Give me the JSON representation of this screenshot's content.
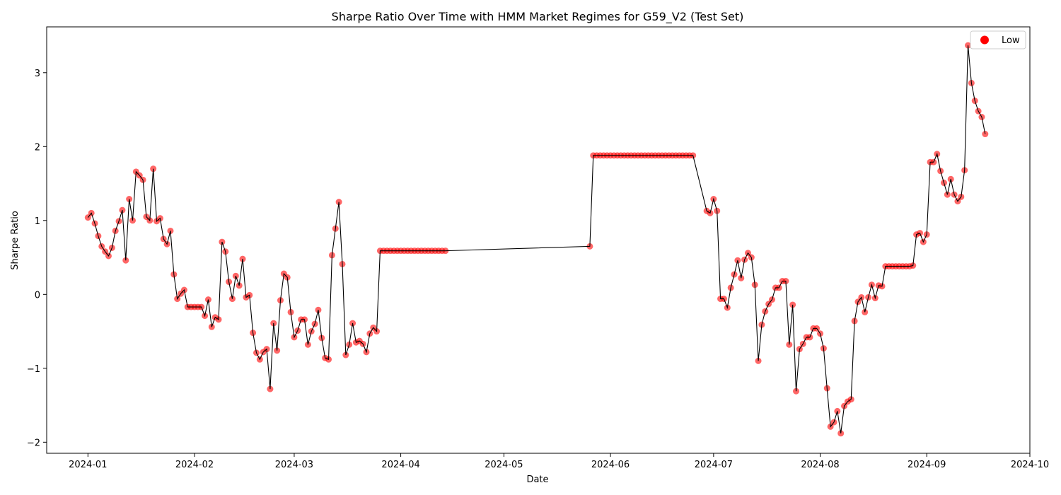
{
  "chart_data": {
    "type": "scatter",
    "title": "Sharpe Ratio Over Time with HMM Market Regimes for G59_V2 (Test Set)",
    "xlabel": "Date",
    "ylabel": "Sharpe Ratio",
    "x_ticks": [
      "2024-01",
      "2024-02",
      "2024-03",
      "2024-04",
      "2024-05",
      "2024-06",
      "2024-07",
      "2024-08",
      "2024-09",
      "2024-10"
    ],
    "y_ticks": [
      "−2",
      "−1",
      "0",
      "1",
      "2",
      "3"
    ],
    "xlim": [
      "2023-12-20",
      "2024-10-01"
    ],
    "ylim": [
      -2.15,
      3.62
    ],
    "grid": false,
    "legend_position": "top-right",
    "line_color": "#000000",
    "marker_color": "#ff0000",
    "legend": [
      {
        "name": "Low",
        "color": "#ff0000"
      }
    ],
    "series": [
      {
        "name": "Low",
        "points": [
          [
            "2024-01-01",
            1.04
          ],
          [
            "2024-01-02",
            1.1
          ],
          [
            "2024-01-03",
            0.96
          ],
          [
            "2024-01-04",
            0.79
          ],
          [
            "2024-01-05",
            0.65
          ],
          [
            "2024-01-06",
            0.58
          ],
          [
            "2024-01-07",
            0.52
          ],
          [
            "2024-01-08",
            0.63
          ],
          [
            "2024-01-09",
            0.86
          ],
          [
            "2024-01-10",
            0.99
          ],
          [
            "2024-01-11",
            1.14
          ],
          [
            "2024-01-12",
            0.46
          ],
          [
            "2024-01-13",
            1.29
          ],
          [
            "2024-01-14",
            1.0
          ],
          [
            "2024-01-15",
            1.66
          ],
          [
            "2024-01-16",
            1.61
          ],
          [
            "2024-01-17",
            1.55
          ],
          [
            "2024-01-18",
            1.05
          ],
          [
            "2024-01-19",
            1.0
          ],
          [
            "2024-01-20",
            1.7
          ],
          [
            "2024-01-21",
            0.99
          ],
          [
            "2024-01-22",
            1.03
          ],
          [
            "2024-01-23",
            0.75
          ],
          [
            "2024-01-24",
            0.68
          ],
          [
            "2024-01-25",
            0.86
          ],
          [
            "2024-01-26",
            0.27
          ],
          [
            "2024-01-27",
            -0.06
          ],
          [
            "2024-01-28",
            0.01
          ],
          [
            "2024-01-29",
            0.06
          ],
          [
            "2024-01-30",
            -0.17
          ],
          [
            "2024-01-31",
            -0.17
          ],
          [
            "2024-02-01",
            -0.17
          ],
          [
            "2024-02-02",
            -0.17
          ],
          [
            "2024-02-03",
            -0.17
          ],
          [
            "2024-02-04",
            -0.29
          ],
          [
            "2024-02-05",
            -0.07
          ],
          [
            "2024-02-06",
            -0.44
          ],
          [
            "2024-02-07",
            -0.31
          ],
          [
            "2024-02-08",
            -0.34
          ],
          [
            "2024-02-09",
            0.71
          ],
          [
            "2024-02-10",
            0.58
          ],
          [
            "2024-02-11",
            0.17
          ],
          [
            "2024-02-12",
            -0.06
          ],
          [
            "2024-02-13",
            0.25
          ],
          [
            "2024-02-14",
            0.12
          ],
          [
            "2024-02-15",
            0.48
          ],
          [
            "2024-02-16",
            -0.04
          ],
          [
            "2024-02-17",
            -0.01
          ],
          [
            "2024-02-18",
            -0.52
          ],
          [
            "2024-02-19",
            -0.79
          ],
          [
            "2024-02-20",
            -0.88
          ],
          [
            "2024-02-21",
            -0.78
          ],
          [
            "2024-02-22",
            -0.74
          ],
          [
            "2024-02-23",
            -1.28
          ],
          [
            "2024-02-24",
            -0.39
          ],
          [
            "2024-02-25",
            -0.76
          ],
          [
            "2024-02-26",
            -0.08
          ],
          [
            "2024-02-27",
            0.28
          ],
          [
            "2024-02-28",
            0.23
          ],
          [
            "2024-02-29",
            -0.24
          ],
          [
            "2024-03-01",
            -0.58
          ],
          [
            "2024-03-02",
            -0.49
          ],
          [
            "2024-03-03",
            -0.34
          ],
          [
            "2024-03-04",
            -0.34
          ],
          [
            "2024-03-05",
            -0.68
          ],
          [
            "2024-03-06",
            -0.5
          ],
          [
            "2024-03-07",
            -0.4
          ],
          [
            "2024-03-08",
            -0.21
          ],
          [
            "2024-03-09",
            -0.59
          ],
          [
            "2024-03-10",
            -0.86
          ],
          [
            "2024-03-11",
            -0.88
          ],
          [
            "2024-03-12",
            0.53
          ],
          [
            "2024-03-13",
            0.89
          ],
          [
            "2024-03-14",
            1.25
          ],
          [
            "2024-03-15",
            0.41
          ],
          [
            "2024-03-16",
            -0.82
          ],
          [
            "2024-03-17",
            -0.68
          ],
          [
            "2024-03-18",
            -0.39
          ],
          [
            "2024-03-19",
            -0.65
          ],
          [
            "2024-03-20",
            -0.63
          ],
          [
            "2024-03-21",
            -0.67
          ],
          [
            "2024-03-22",
            -0.78
          ],
          [
            "2024-03-23",
            -0.53
          ],
          [
            "2024-03-24",
            -0.45
          ],
          [
            "2024-03-25",
            -0.5
          ],
          [
            "2024-03-26",
            0.59
          ],
          [
            "2024-03-27",
            0.59
          ],
          [
            "2024-03-28",
            0.59
          ],
          [
            "2024-03-29",
            0.59
          ],
          [
            "2024-03-30",
            0.59
          ],
          [
            "2024-03-31",
            0.59
          ],
          [
            "2024-04-01",
            0.59
          ],
          [
            "2024-04-02",
            0.59
          ],
          [
            "2024-04-03",
            0.59
          ],
          [
            "2024-04-04",
            0.59
          ],
          [
            "2024-04-05",
            0.59
          ],
          [
            "2024-04-06",
            0.59
          ],
          [
            "2024-04-07",
            0.59
          ],
          [
            "2024-04-08",
            0.59
          ],
          [
            "2024-04-09",
            0.59
          ],
          [
            "2024-04-10",
            0.59
          ],
          [
            "2024-04-11",
            0.59
          ],
          [
            "2024-04-12",
            0.59
          ],
          [
            "2024-04-13",
            0.59
          ],
          [
            "2024-04-14",
            0.59
          ],
          [
            "2024-05-26",
            0.65
          ],
          [
            "2024-05-27",
            1.88
          ],
          [
            "2024-05-28",
            1.88
          ],
          [
            "2024-05-29",
            1.88
          ],
          [
            "2024-05-30",
            1.88
          ],
          [
            "2024-05-31",
            1.88
          ],
          [
            "2024-06-01",
            1.88
          ],
          [
            "2024-06-02",
            1.88
          ],
          [
            "2024-06-03",
            1.88
          ],
          [
            "2024-06-04",
            1.88
          ],
          [
            "2024-06-05",
            1.88
          ],
          [
            "2024-06-06",
            1.88
          ],
          [
            "2024-06-07",
            1.88
          ],
          [
            "2024-06-08",
            1.88
          ],
          [
            "2024-06-09",
            1.88
          ],
          [
            "2024-06-10",
            1.88
          ],
          [
            "2024-06-11",
            1.88
          ],
          [
            "2024-06-12",
            1.88
          ],
          [
            "2024-06-13",
            1.88
          ],
          [
            "2024-06-14",
            1.88
          ],
          [
            "2024-06-15",
            1.88
          ],
          [
            "2024-06-16",
            1.88
          ],
          [
            "2024-06-17",
            1.88
          ],
          [
            "2024-06-18",
            1.88
          ],
          [
            "2024-06-19",
            1.88
          ],
          [
            "2024-06-20",
            1.88
          ],
          [
            "2024-06-21",
            1.88
          ],
          [
            "2024-06-22",
            1.88
          ],
          [
            "2024-06-23",
            1.88
          ],
          [
            "2024-06-24",
            1.88
          ],
          [
            "2024-06-25",
            1.88
          ],
          [
            "2024-06-29",
            1.13
          ],
          [
            "2024-06-30",
            1.1
          ],
          [
            "2024-07-01",
            1.29
          ],
          [
            "2024-07-02",
            1.13
          ],
          [
            "2024-07-03",
            -0.06
          ],
          [
            "2024-07-04",
            -0.06
          ],
          [
            "2024-07-05",
            -0.18
          ],
          [
            "2024-07-06",
            0.09
          ],
          [
            "2024-07-07",
            0.27
          ],
          [
            "2024-07-08",
            0.46
          ],
          [
            "2024-07-09",
            0.22
          ],
          [
            "2024-07-10",
            0.47
          ],
          [
            "2024-07-11",
            0.56
          ],
          [
            "2024-07-12",
            0.5
          ],
          [
            "2024-07-13",
            0.13
          ],
          [
            "2024-07-14",
            -0.9
          ],
          [
            "2024-07-15",
            -0.41
          ],
          [
            "2024-07-16",
            -0.23
          ],
          [
            "2024-07-17",
            -0.13
          ],
          [
            "2024-07-18",
            -0.07
          ],
          [
            "2024-07-19",
            0.09
          ],
          [
            "2024-07-20",
            0.09
          ],
          [
            "2024-07-21",
            0.18
          ],
          [
            "2024-07-22",
            0.18
          ],
          [
            "2024-07-23",
            -0.68
          ],
          [
            "2024-07-24",
            -0.14
          ],
          [
            "2024-07-25",
            -1.31
          ],
          [
            "2024-07-26",
            -0.74
          ],
          [
            "2024-07-27",
            -0.67
          ],
          [
            "2024-07-28",
            -0.58
          ],
          [
            "2024-07-29",
            -0.58
          ],
          [
            "2024-07-30",
            -0.46
          ],
          [
            "2024-07-31",
            -0.46
          ],
          [
            "2024-08-01",
            -0.53
          ],
          [
            "2024-08-02",
            -0.73
          ],
          [
            "2024-08-03",
            -1.27
          ],
          [
            "2024-08-04",
            -1.79
          ],
          [
            "2024-08-05",
            -1.73
          ],
          [
            "2024-08-06",
            -1.58
          ],
          [
            "2024-08-07",
            -1.88
          ],
          [
            "2024-08-08",
            -1.51
          ],
          [
            "2024-08-09",
            -1.45
          ],
          [
            "2024-08-10",
            -1.42
          ],
          [
            "2024-08-11",
            -0.36
          ],
          [
            "2024-08-12",
            -0.1
          ],
          [
            "2024-08-13",
            -0.04
          ],
          [
            "2024-08-14",
            -0.24
          ],
          [
            "2024-08-15",
            -0.04
          ],
          [
            "2024-08-16",
            0.13
          ],
          [
            "2024-08-17",
            -0.05
          ],
          [
            "2024-08-18",
            0.12
          ],
          [
            "2024-08-19",
            0.11
          ],
          [
            "2024-08-20",
            0.38
          ],
          [
            "2024-08-21",
            0.38
          ],
          [
            "2024-08-22",
            0.38
          ],
          [
            "2024-08-23",
            0.38
          ],
          [
            "2024-08-24",
            0.38
          ],
          [
            "2024-08-25",
            0.38
          ],
          [
            "2024-08-26",
            0.38
          ],
          [
            "2024-08-27",
            0.38
          ],
          [
            "2024-08-28",
            0.39
          ],
          [
            "2024-08-29",
            0.81
          ],
          [
            "2024-08-30",
            0.83
          ],
          [
            "2024-08-31",
            0.71
          ],
          [
            "2024-09-01",
            0.81
          ],
          [
            "2024-09-02",
            1.79
          ],
          [
            "2024-09-03",
            1.79
          ],
          [
            "2024-09-04",
            1.9
          ],
          [
            "2024-09-05",
            1.67
          ],
          [
            "2024-09-06",
            1.51
          ],
          [
            "2024-09-07",
            1.35
          ],
          [
            "2024-09-08",
            1.56
          ],
          [
            "2024-09-09",
            1.35
          ],
          [
            "2024-09-10",
            1.26
          ],
          [
            "2024-09-11",
            1.32
          ],
          [
            "2024-09-12",
            1.68
          ],
          [
            "2024-09-13",
            3.37
          ],
          [
            "2024-09-14",
            2.86
          ],
          [
            "2024-09-15",
            2.62
          ],
          [
            "2024-09-16",
            2.48
          ],
          [
            "2024-09-17",
            2.4
          ],
          [
            "2024-09-18",
            2.17
          ]
        ]
      }
    ]
  }
}
